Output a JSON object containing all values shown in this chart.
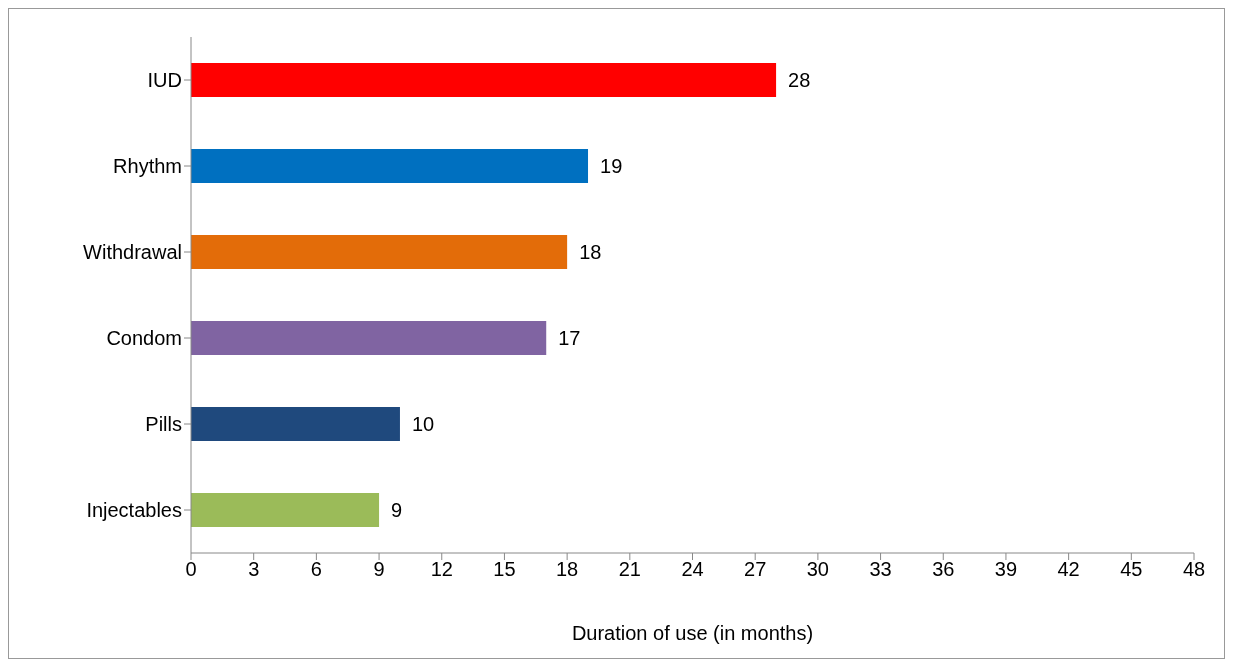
{
  "chart_data": {
    "type": "bar",
    "orientation": "horizontal",
    "xlabel": "Duration of use (in months)",
    "categories": [
      "IUD",
      "Rhythm",
      "Withdrawal",
      "Condom",
      "Pills",
      "Injectables"
    ],
    "values": [
      28,
      19,
      18,
      17,
      10,
      9
    ],
    "colors": [
      "#ff0000",
      "#0070c0",
      "#e36c09",
      "#8064a2",
      "#1f497d",
      "#9bbb59"
    ],
    "xlim": [
      0,
      48
    ],
    "xticks": [
      0,
      3,
      6,
      9,
      12,
      15,
      18,
      21,
      24,
      27,
      30,
      33,
      36,
      39,
      42,
      45,
      48
    ],
    "data_labels": true
  }
}
